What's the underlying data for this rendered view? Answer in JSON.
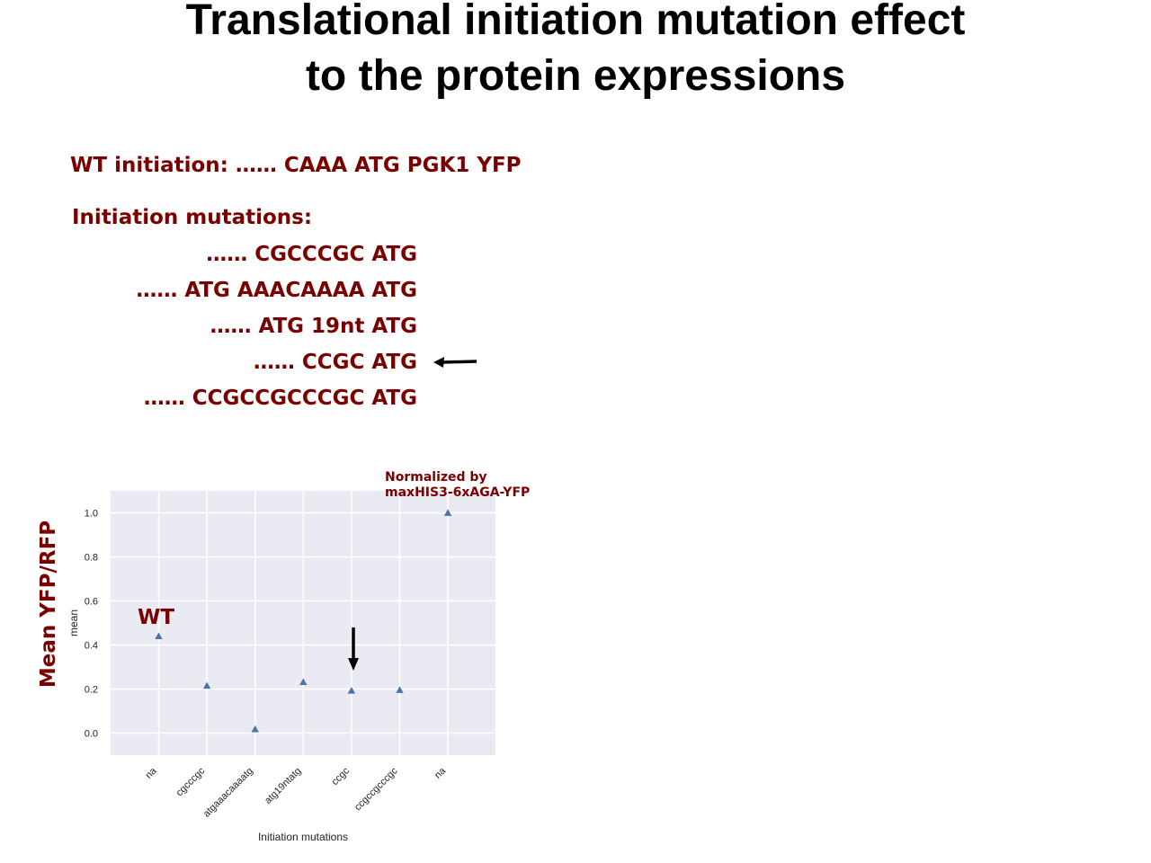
{
  "title": {
    "line1": "Translational initiation mutation effect",
    "line2": "to the protein expressions"
  },
  "wt_initiation": "WT initiation: …… CAAA ATG PGK1 YFP",
  "mutations": {
    "heading": "Initiation mutations:",
    "items": [
      "…… CGCCCGC ATG",
      "…… ATG AAACAAAA ATG",
      "…… ATG 19nt ATG",
      "…… CCGC ATG",
      "…… CCGCCGCCCGC ATG"
    ]
  },
  "annotations": {
    "normalized_note_line1": "Normalized by",
    "normalized_note_line2": "maxHIS3-6xAGA-YFP",
    "y_axis_outer_label": "Mean YFP/RFP",
    "wt_label": "WT"
  },
  "colors": {
    "accent_dark_red": "#7a0000",
    "plot_background": "#eaeaf2",
    "marker": "#4c72b0"
  },
  "chart_data": {
    "type": "scatter",
    "marker": "triangle",
    "categories": [
      "na",
      "cgcccgc",
      "atgaaacaaaatg",
      "atg19ntatg",
      "ccgc",
      "ccgccgcccgc",
      "na"
    ],
    "values": [
      0.44,
      0.215,
      0.018,
      0.232,
      0.193,
      0.196,
      1.0
    ],
    "xlabel": "Initiation mutations",
    "ylabel": "mean",
    "ylim": [
      -0.1,
      1.1
    ],
    "yticks": [
      0.0,
      0.2,
      0.4,
      0.6,
      0.8,
      1.0
    ],
    "ytick_labels": [
      "0.0",
      "0.2",
      "0.4",
      "0.6",
      "0.8",
      "1.0"
    ],
    "grid": true,
    "highlighted_category_index": 4
  }
}
